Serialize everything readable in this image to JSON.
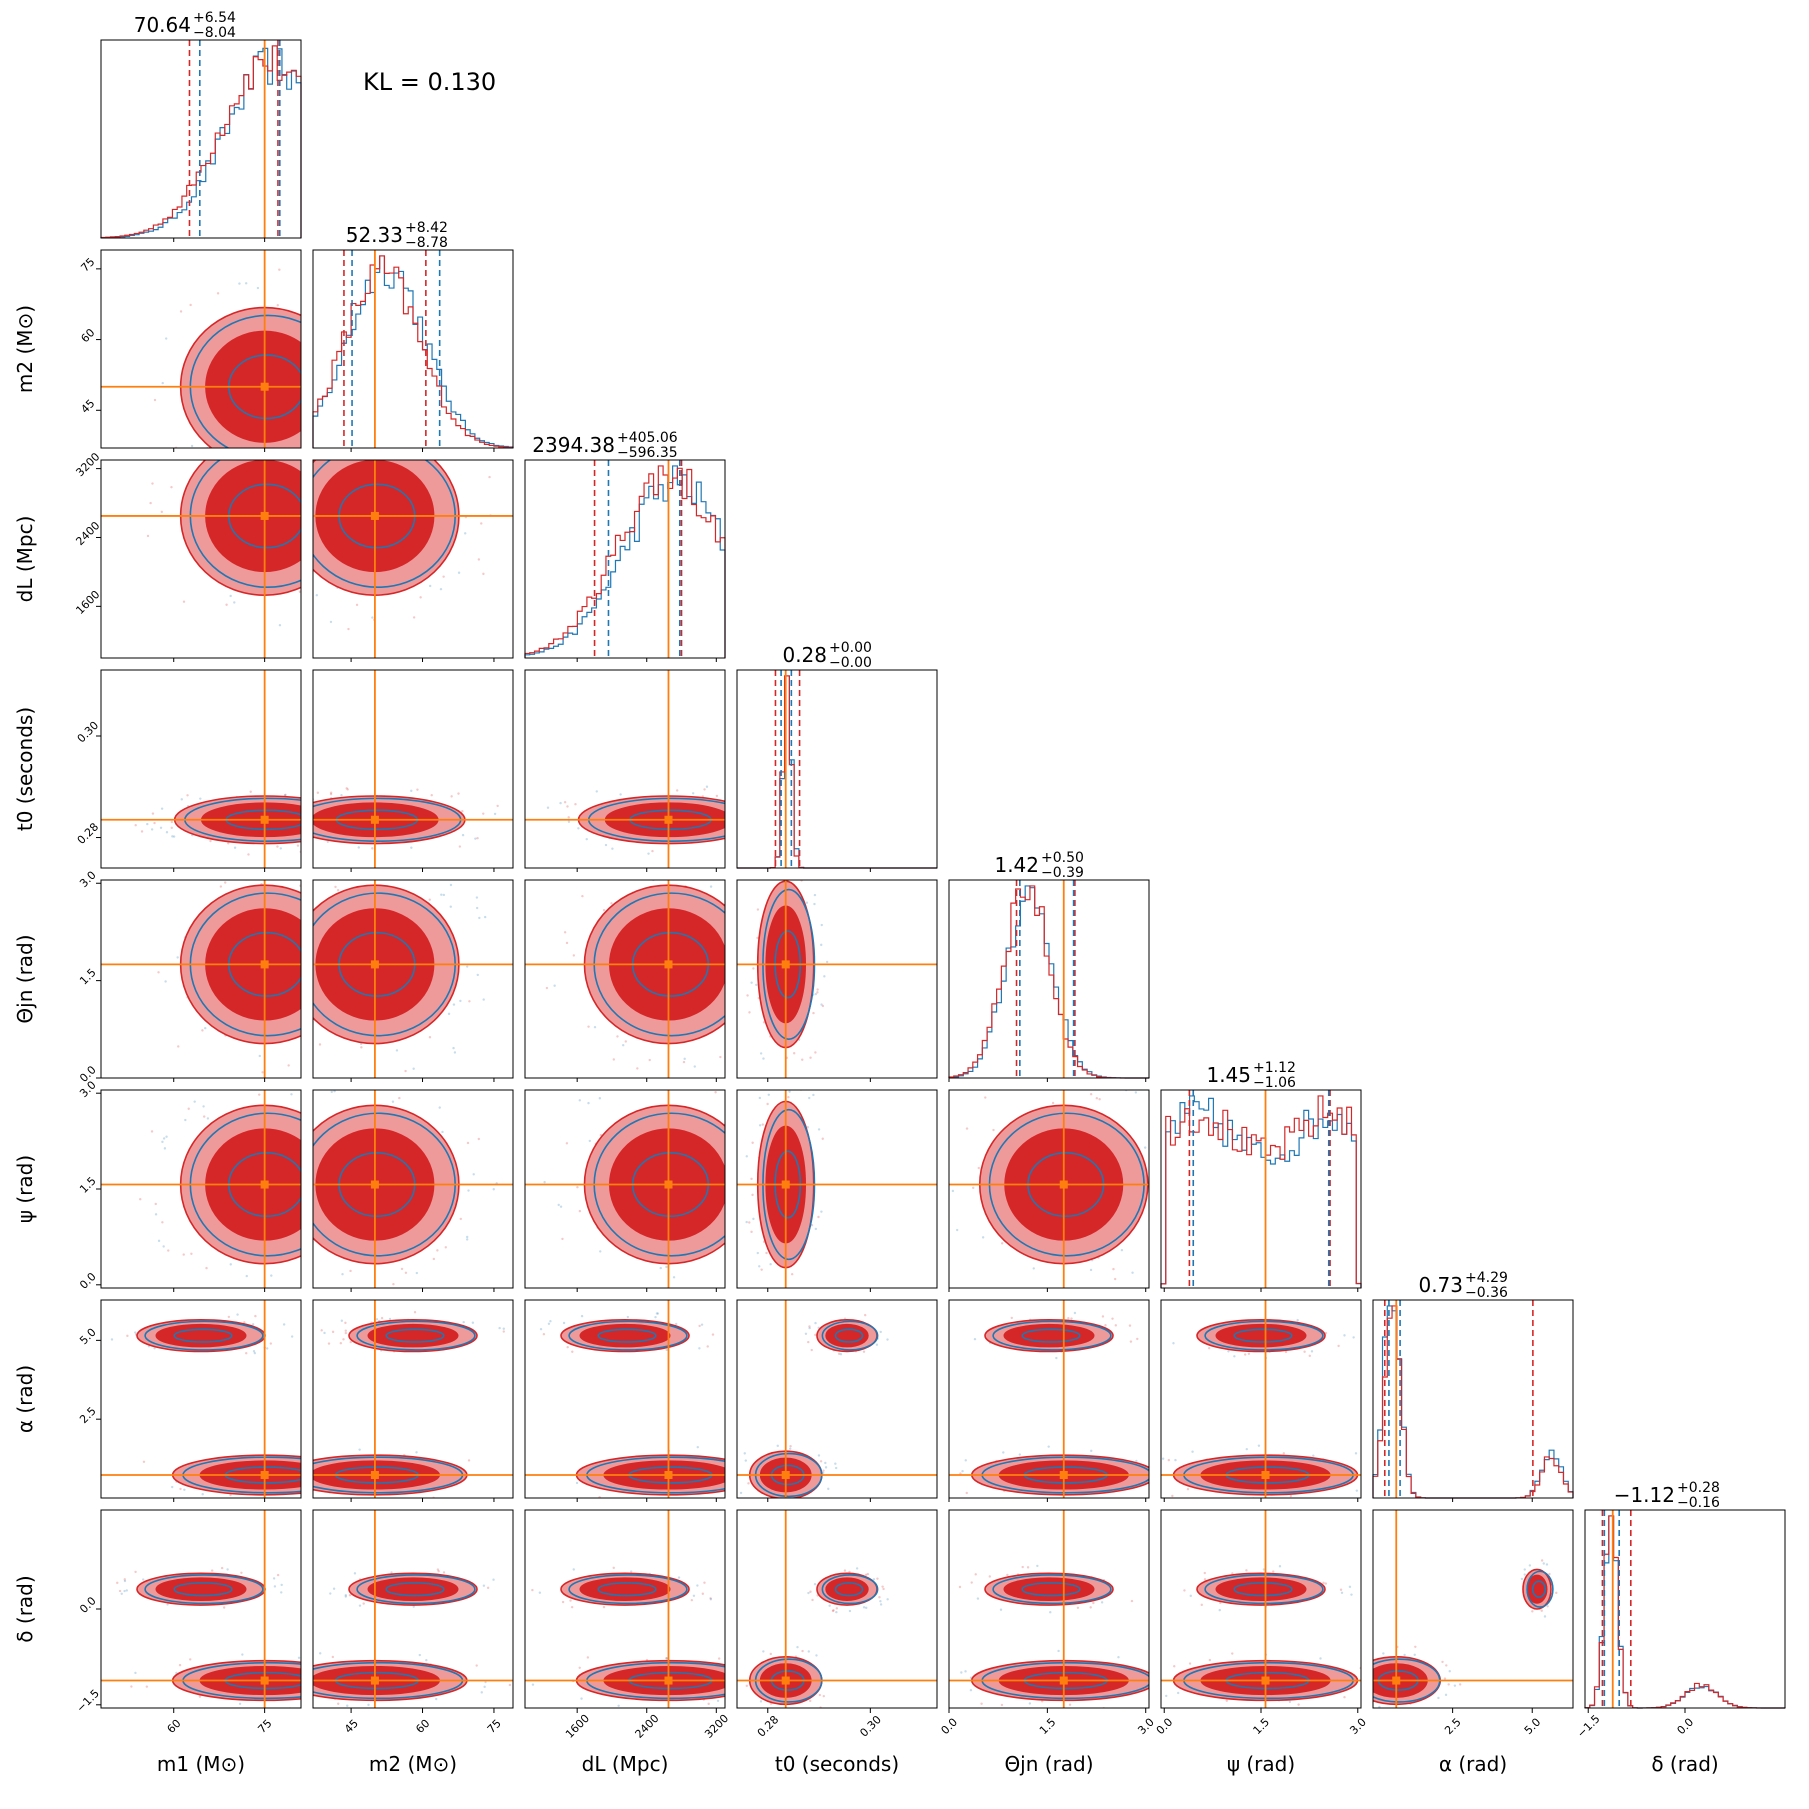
{
  "annotation": "KL = 0.130",
  "colors": {
    "posterior_a": "#d62728",
    "posterior_b": "#1f77b4",
    "truth": "#ff7f0e",
    "fill_inner": "#d62728",
    "fill_outer": "#ee9a9b"
  },
  "chart_data": {
    "type": "corner",
    "grid": false,
    "params": [
      {
        "label": "m1 (M⊙)",
        "lo": 48,
        "hi": 81,
        "ticks": [
          60,
          75
        ],
        "tick_labels": [
          "60",
          "75"
        ],
        "truth": 75,
        "median": "70.64",
        "plus": "+6.54",
        "minus": "−8.04",
        "q_a": [
          62.6,
          77.2
        ],
        "q_b": [
          64.3,
          77.5
        ],
        "peak": 76,
        "width": 8
      },
      {
        "label": "m2 (M⊙)",
        "lo": 37,
        "hi": 79,
        "ticks": [
          45,
          60,
          75
        ],
        "tick_labels": [
          "45",
          "60",
          "75"
        ],
        "truth": 50,
        "median": "52.33",
        "plus": "+8.42",
        "minus": "−8.78",
        "q_a": [
          43.5,
          60.7
        ],
        "q_b": [
          45.2,
          63.6
        ],
        "peak": 52,
        "width": 8
      },
      {
        "label": "dL (Mpc)",
        "lo": 1000,
        "hi": 3300,
        "ticks": [
          1600,
          2400,
          3200
        ],
        "tick_labels": [
          "1600",
          "2400",
          "3200"
        ],
        "truth": 2650,
        "median": "2394.38",
        "plus": "+405.06",
        "minus": "−596.35",
        "q_a": [
          1800,
          2800
        ],
        "q_b": [
          1960,
          2780
        ],
        "peak": 2700,
        "width": 600
      },
      {
        "label": "t0 (seconds)",
        "lo": 0.274,
        "hi": 0.313,
        "ticks": [
          0.28,
          0.3
        ],
        "tick_labels": [
          "0.28",
          "0.30"
        ],
        "truth": 0.2835,
        "median": "0.28",
        "plus": "+0.00",
        "minus": "−0.00",
        "q_a": [
          0.2815,
          0.2862
        ],
        "q_b": [
          0.2826,
          0.2846
        ],
        "peak": 0.2838,
        "width": 0.0008
      },
      {
        "label": "Θjn (rad)",
        "lo": 0.0,
        "hi": 3.05,
        "ticks": [
          0.0,
          1.5,
          3.0
        ],
        "tick_labels": [
          "0.0",
          "1.5",
          "3.0"
        ],
        "truth": 1.75,
        "median": "1.42",
        "plus": "+0.50",
        "minus": "−0.39",
        "q_a": [
          1.03,
          1.92
        ],
        "q_b": [
          1.08,
          1.9
        ],
        "peak": 1.2,
        "width": 0.35
      },
      {
        "label": "ψ (rad)",
        "lo": -0.05,
        "hi": 3.05,
        "ticks": [
          0.0,
          1.5,
          3.0
        ],
        "tick_labels": [
          "0.0",
          "1.5",
          "3.0"
        ],
        "truth": 1.57,
        "median": "1.45",
        "plus": "+1.12",
        "minus": "−1.06",
        "q_a": [
          0.39,
          2.57
        ],
        "q_b": [
          0.45,
          2.55
        ],
        "peak": 1.5,
        "width": 1.4
      },
      {
        "label": "α (rad)",
        "lo": 0.0,
        "hi": 6.28,
        "ticks": [
          2.5,
          5.0
        ],
        "tick_labels": [
          "2.5",
          "5.0"
        ],
        "truth": 0.73,
        "median": "0.73",
        "plus": "+4.29",
        "minus": "−0.36",
        "q_a": [
          0.37,
          5.02
        ],
        "q_b": [
          0.5,
          0.85
        ],
        "peak": 0.6,
        "width": 0.25
      },
      {
        "label": "δ (rad)",
        "lo": -1.55,
        "hi": 1.55,
        "ticks": [
          -1.5,
          0.0
        ],
        "tick_labels": [
          "−1.5",
          "0.0"
        ],
        "truth": -1.12,
        "median": "−1.12",
        "plus": "+0.28",
        "minus": "−0.16",
        "q_a": [
          -1.28,
          -0.84
        ],
        "q_b": [
          -1.25,
          -1.02
        ],
        "peak": -1.15,
        "width": 0.1
      }
    ],
    "y_axis_ticks": {
      "1": {
        "ticks": [
          45,
          60,
          75
        ],
        "tick_labels": [
          "45",
          "60",
          "75"
        ]
      },
      "2": {
        "ticks": [
          1600,
          2400,
          3200
        ],
        "tick_labels": [
          "1600",
          "2400",
          "3200"
        ]
      },
      "3": {
        "ticks": [
          0.28,
          0.3
        ],
        "tick_labels": [
          "0.28",
          "0.30"
        ]
      },
      "4": {
        "ticks": [
          0.0,
          1.5,
          3.0
        ],
        "tick_labels": [
          "0.0",
          "1.5",
          "3.0"
        ]
      },
      "5": {
        "ticks": [
          0.0,
          1.5,
          3.0
        ],
        "tick_labels": [
          "0.0",
          "1.5",
          "3.0"
        ]
      },
      "6": {
        "ticks": [
          2.5,
          5.0
        ],
        "tick_labels": [
          "2.5",
          "5.0"
        ]
      },
      "7": {
        "ticks": [
          -1.5,
          0.0
        ],
        "tick_labels": [
          "−1.5",
          "0.0"
        ]
      }
    }
  }
}
